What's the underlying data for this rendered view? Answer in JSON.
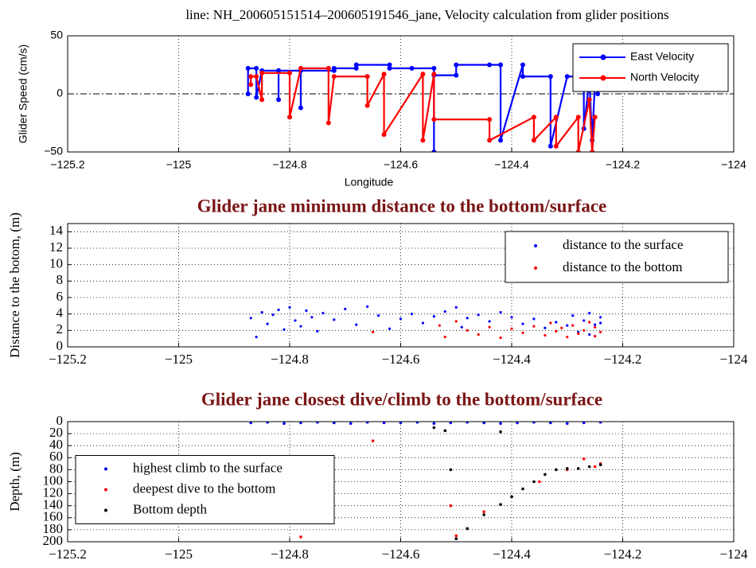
{
  "chart_data": [
    {
      "type": "line",
      "title": "line: NH_200605151514–200605191546_jane, Velocity calculation from glider positions",
      "x_label": "Longitude",
      "y_label": "Glider Speed (cm/s)",
      "xlim": [
        -125.2,
        -124
      ],
      "xticks": [
        {
          "value": -125.2,
          "label": "−125.2"
        },
        {
          "value": -125,
          "label": "−125"
        },
        {
          "value": -124.8,
          "label": "−124.8"
        },
        {
          "value": -124.6,
          "label": "−124.6"
        },
        {
          "value": -124.4,
          "label": "−124.4"
        },
        {
          "value": -124.2,
          "label": "−124.2"
        },
        {
          "value": -124,
          "label": "−124"
        }
      ],
      "ylim": [
        -50,
        50
      ],
      "yticks": [
        {
          "value": -50,
          "label": "−50"
        },
        0,
        50
      ],
      "grid": "x",
      "hline": 0,
      "legend": "upper right",
      "series": [
        {
          "name": "East Velocity",
          "color": "#0000ff",
          "x": [
            -124.875,
            -124.875,
            -124.86,
            -124.86,
            -124.85,
            -124.82,
            -124.82,
            -124.82,
            -124.78,
            -124.78,
            -124.78,
            -124.72,
            -124.72,
            -124.68,
            -124.68,
            -124.62,
            -124.62,
            -124.58,
            -124.54,
            -124.54,
            -124.54,
            -124.5,
            -124.5,
            -124.44,
            -124.42,
            -124.42,
            -124.38,
            -124.38,
            -124.33,
            -124.33,
            -124.3,
            -124.28,
            -124.27,
            -124.27,
            -124.26,
            -124.255,
            -124.25,
            -124.245
          ],
          "values": [
            0,
            22,
            22,
            -3,
            20,
            20,
            -5,
            20,
            20,
            -12,
            20,
            20,
            22,
            22,
            25,
            25,
            22,
            22,
            22,
            -50,
            16,
            16,
            25,
            25,
            25,
            -40,
            25,
            15,
            15,
            -45,
            15,
            15,
            15,
            -30,
            12,
            -40,
            10,
            0
          ]
        },
        {
          "name": "North Velocity",
          "color": "#ff0000",
          "x": [
            -124.87,
            -124.87,
            -124.86,
            -124.85,
            -124.85,
            -124.8,
            -124.8,
            -124.78,
            -124.73,
            -124.73,
            -124.72,
            -124.66,
            -124.66,
            -124.63,
            -124.63,
            -124.56,
            -124.56,
            -124.54,
            -124.54,
            -124.44,
            -124.44,
            -124.36,
            -124.36,
            -124.32,
            -124.32,
            -124.28,
            -124.28,
            -124.26,
            -124.255,
            -124.25
          ],
          "values": [
            8,
            15,
            15,
            -5,
            18,
            18,
            -20,
            22,
            22,
            -25,
            15,
            15,
            -10,
            17,
            -35,
            17,
            -40,
            17,
            -22,
            -22,
            -40,
            -20,
            -40,
            -20,
            -45,
            -20,
            -50,
            -5,
            -50,
            -20
          ]
        }
      ]
    },
    {
      "type": "scatter",
      "title": "Glider jane minimum distance to the bottom/surface",
      "y_label": "Distance to the botom, (m)",
      "xlim": [
        -125.2,
        -124
      ],
      "xticks": [
        {
          "value": -125.2,
          "label": "−125.2"
        },
        {
          "value": -125,
          "label": "−125"
        },
        {
          "value": -124.8,
          "label": "−124.8"
        },
        {
          "value": -124.6,
          "label": "−124.6"
        },
        {
          "value": -124.4,
          "label": "−124.4"
        },
        {
          "value": -124.2,
          "label": "−124.2"
        },
        {
          "value": -124,
          "label": "−124"
        }
      ],
      "ylim": [
        0,
        15
      ],
      "yticks": [
        0,
        2,
        4,
        6,
        8,
        10,
        12,
        14
      ],
      "grid": true,
      "legend": "upper right",
      "series": [
        {
          "name": "distance to the surface",
          "color": "#0000ff",
          "x": [
            -124.87,
            -124.86,
            -124.85,
            -124.84,
            -124.83,
            -124.82,
            -124.81,
            -124.8,
            -124.79,
            -124.78,
            -124.77,
            -124.76,
            -124.75,
            -124.74,
            -124.72,
            -124.7,
            -124.68,
            -124.66,
            -124.64,
            -124.62,
            -124.6,
            -124.58,
            -124.56,
            -124.54,
            -124.52,
            -124.5,
            -124.49,
            -124.48,
            -124.46,
            -124.44,
            -124.42,
            -124.4,
            -124.38,
            -124.36,
            -124.34,
            -124.32,
            -124.3,
            -124.29,
            -124.28,
            -124.27,
            -124.26,
            -124.26,
            -124.25,
            -124.25,
            -124.24,
            -124.24
          ],
          "values": [
            3.5,
            1.2,
            4.2,
            2.8,
            3.9,
            4.5,
            2.1,
            4.8,
            3.2,
            2.5,
            4.4,
            3.6,
            1.9,
            4.1,
            3.3,
            4.6,
            2.7,
            4.9,
            3.8,
            2.2,
            3.4,
            4.0,
            2.9,
            3.7,
            4.3,
            4.8,
            2.4,
            3.5,
            3.9,
            3.1,
            4.2,
            3.6,
            2.8,
            3.4,
            2.3,
            3.0,
            2.6,
            3.8,
            1.8,
            3.2,
            1.5,
            4.1,
            2.7,
            1.3,
            3.6,
            2.9
          ]
        },
        {
          "name": "distance to the bottom",
          "color": "#ff0000",
          "x": [
            -124.65,
            -124.53,
            -124.52,
            -124.5,
            -124.48,
            -124.46,
            -124.44,
            -124.42,
            -124.4,
            -124.38,
            -124.36,
            -124.34,
            -124.33,
            -124.32,
            -124.31,
            -124.3,
            -124.29,
            -124.28,
            -124.27,
            -124.26,
            -124.25,
            -124.25,
            -124.24
          ],
          "values": [
            1.8,
            2.6,
            1.2,
            3.1,
            2.0,
            1.5,
            2.4,
            1.1,
            2.2,
            1.7,
            2.5,
            1.4,
            2.9,
            1.9,
            2.3,
            1.2,
            2.6,
            1.6,
            2.0,
            3.0,
            1.3,
            2.4,
            1.8
          ]
        }
      ]
    },
    {
      "type": "scatter",
      "title": "Glider jane closest dive/climb to the bottom/surface",
      "y_label": "Depth, (m)",
      "xlim": [
        -125.2,
        -124
      ],
      "xticks": [
        {
          "value": -125.2,
          "label": "−125.2"
        },
        {
          "value": -125,
          "label": "−125"
        },
        {
          "value": -124.8,
          "label": "−124.8"
        },
        {
          "value": -124.6,
          "label": "−124.6"
        },
        {
          "value": -124.4,
          "label": "−124.4"
        },
        {
          "value": -124.2,
          "label": "−124.2"
        },
        {
          "value": -124,
          "label": "−124"
        }
      ],
      "ylim": [
        0,
        200
      ],
      "y_inverted": true,
      "yticks": [
        0,
        20,
        40,
        60,
        80,
        100,
        120,
        140,
        160,
        180,
        200
      ],
      "grid": true,
      "legend": "center left",
      "series": [
        {
          "name": "highest climb to the surface",
          "color": "#0000ff",
          "x": [
            -124.87,
            -124.84,
            -124.81,
            -124.78,
            -124.75,
            -124.72,
            -124.69,
            -124.66,
            -124.63,
            -124.6,
            -124.57,
            -124.54,
            -124.51,
            -124.48,
            -124.45,
            -124.42,
            -124.39,
            -124.36,
            -124.33,
            -124.3,
            -124.27,
            -124.24
          ],
          "values": [
            2,
            1,
            3,
            2,
            1,
            2,
            3,
            1,
            2,
            2,
            1,
            3,
            2,
            1,
            2,
            3,
            2,
            1,
            2,
            3,
            2,
            1
          ]
        },
        {
          "name": "deepest dive to the bottom",
          "color": "#ff0000",
          "x": [
            -124.78,
            -124.65,
            -124.51,
            -124.5,
            -124.45,
            -124.4,
            -124.35,
            -124.3,
            -124.27,
            -124.25,
            -124.24
          ],
          "values": [
            192,
            32,
            140,
            190,
            150,
            125,
            100,
            80,
            62,
            75,
            70
          ]
        },
        {
          "name": "Bottom depth",
          "color": "#000000",
          "x": [
            -124.54,
            -124.52,
            -124.51,
            -124.5,
            -124.48,
            -124.45,
            -124.42,
            -124.4,
            -124.38,
            -124.36,
            -124.34,
            -124.32,
            -124.3,
            -124.28,
            -124.26,
            -124.24,
            -124.42
          ],
          "values": [
            10,
            15,
            80,
            195,
            178,
            155,
            138,
            125,
            112,
            100,
            88,
            80,
            78,
            78,
            75,
            72,
            17
          ]
        }
      ]
    }
  ]
}
